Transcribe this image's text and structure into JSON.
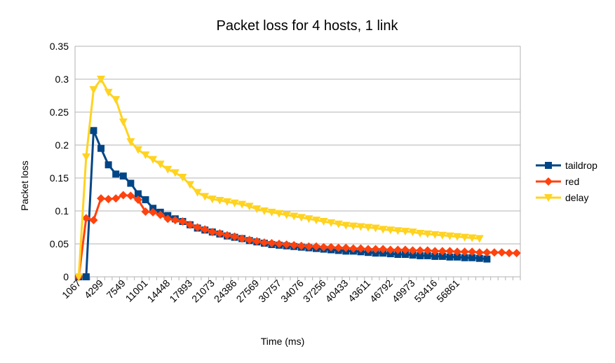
{
  "chart_data": {
    "type": "line",
    "title": "Packet loss for 4 hosts, 1 link",
    "xlabel": "Time (ms)",
    "ylabel": "Packet loss",
    "ylim": [
      0,
      0.35
    ],
    "yticks": [
      "0",
      "0.05",
      "0.1",
      "0.15",
      "0.2",
      "0.25",
      "0.3",
      "0.35"
    ],
    "xtick_labels": [
      "1067",
      "4299",
      "7549",
      "11001",
      "14448",
      "17893",
      "21073",
      "24386",
      "27569",
      "30757",
      "34076",
      "37256",
      "40433",
      "43611",
      "46792",
      "49973",
      "53416",
      "56861"
    ],
    "grid": true,
    "legend_position": "right",
    "series": [
      {
        "name": "taildrop",
        "color": "#004586",
        "marker": "square",
        "values": [
          0,
          0,
          0.222,
          0.195,
          0.17,
          0.156,
          0.153,
          0.142,
          0.126,
          0.117,
          0.104,
          0.098,
          0.093,
          0.088,
          0.084,
          0.079,
          0.074,
          0.071,
          0.068,
          0.065,
          0.062,
          0.06,
          0.058,
          0.055,
          0.053,
          0.051,
          0.049,
          0.048,
          0.047,
          0.046,
          0.045,
          0.044,
          0.043,
          0.042,
          0.041,
          0.04,
          0.039,
          0.039,
          0.038,
          0.037,
          0.036,
          0.036,
          0.035,
          0.034,
          0.034,
          0.033,
          0.032,
          0.032,
          0.031,
          0.031,
          0.03,
          0.03,
          0.029,
          0.029,
          0.028,
          0.027
        ]
      },
      {
        "name": "red",
        "color": "#ff420e",
        "marker": "diamond",
        "values": [
          0,
          0.089,
          0.086,
          0.119,
          0.118,
          0.119,
          0.124,
          0.123,
          0.117,
          0.099,
          0.098,
          0.094,
          0.088,
          0.086,
          0.084,
          0.079,
          0.075,
          0.072,
          0.068,
          0.066,
          0.063,
          0.061,
          0.058,
          0.056,
          0.054,
          0.052,
          0.051,
          0.05,
          0.049,
          0.048,
          0.047,
          0.046,
          0.046,
          0.045,
          0.045,
          0.044,
          0.044,
          0.043,
          0.043,
          0.042,
          0.042,
          0.042,
          0.041,
          0.041,
          0.041,
          0.04,
          0.04,
          0.04,
          0.039,
          0.039,
          0.039,
          0.038,
          0.038,
          0.038,
          0.037,
          0.037,
          0.037,
          0.037,
          0.036,
          0.036
        ]
      },
      {
        "name": "delay",
        "color": "#ffd320",
        "marker": "triangle-down",
        "values": [
          0,
          0.182,
          0.284,
          0.3,
          0.28,
          0.269,
          0.235,
          0.205,
          0.193,
          0.185,
          0.178,
          0.171,
          0.163,
          0.158,
          0.151,
          0.14,
          0.128,
          0.122,
          0.118,
          0.116,
          0.114,
          0.112,
          0.11,
          0.107,
          0.103,
          0.1,
          0.098,
          0.096,
          0.094,
          0.092,
          0.09,
          0.088,
          0.086,
          0.084,
          0.082,
          0.08,
          0.078,
          0.077,
          0.076,
          0.075,
          0.074,
          0.072,
          0.071,
          0.07,
          0.069,
          0.068,
          0.066,
          0.065,
          0.064,
          0.063,
          0.062,
          0.061,
          0.06,
          0.059,
          0.058
        ]
      }
    ]
  }
}
